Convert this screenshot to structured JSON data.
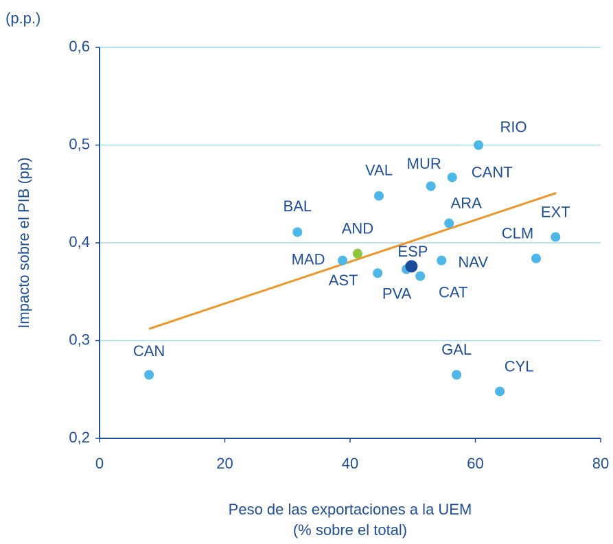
{
  "chart_data": {
    "type": "scatter",
    "unit_label": "(p.p.)",
    "ylabel": "Impacto sobre el PIB (pp)",
    "xlabel": [
      "Peso de las exportaciones a la UEM",
      "(% sobre el total)"
    ],
    "labels": [
      "CAN",
      "BAL",
      "MAD",
      "AND",
      "AST",
      "VAL",
      "PVA",
      "ESP",
      "CAT",
      "MUR",
      "NAV",
      "ARA",
      "CANT",
      "GAL",
      "RIO",
      "CYL",
      "CLM",
      "EXT"
    ],
    "x": [
      7.9,
      31.6,
      38.8,
      41.2,
      44.4,
      44.6,
      49.0,
      49.8,
      51.2,
      52.9,
      54.6,
      55.8,
      56.3,
      57.0,
      60.5,
      63.9,
      69.7,
      72.8
    ],
    "y": [
      0.265,
      0.411,
      0.382,
      0.389,
      0.369,
      0.448,
      0.373,
      0.376,
      0.366,
      0.458,
      0.382,
      0.42,
      0.467,
      0.265,
      0.5,
      0.248,
      0.384,
      0.406
    ],
    "colors": [
      "#4db8e8",
      "#4db8e8",
      "#4db8e8",
      "#8dc63f",
      "#4db8e8",
      "#4db8e8",
      "#4db8e8",
      "#1a4b9c",
      "#4db8e8",
      "#4db8e8",
      "#4db8e8",
      "#4db8e8",
      "#4db8e8",
      "#4db8e8",
      "#4db8e8",
      "#4db8e8",
      "#4db8e8",
      "#4db8e8"
    ],
    "trendline": {
      "x": [
        7.9,
        72.9
      ],
      "y": [
        0.312,
        0.451
      ],
      "color": "#f0952a"
    },
    "xlim": [
      0,
      80
    ],
    "xticks": [
      0,
      20,
      40,
      60,
      80
    ],
    "ylim": [
      0.2,
      0.6
    ],
    "yticks": [
      {
        "value": 0.2,
        "label": "0,2"
      },
      {
        "value": 0.3,
        "label": "0,3"
      },
      {
        "value": 0.4,
        "label": "0,4"
      },
      {
        "value": 0.5,
        "label": "0,5"
      },
      {
        "value": 0.6,
        "label": "0,6"
      }
    ],
    "grid": true,
    "grid_color": "#a8dcef",
    "axis_color": "#1f4e9a"
  }
}
